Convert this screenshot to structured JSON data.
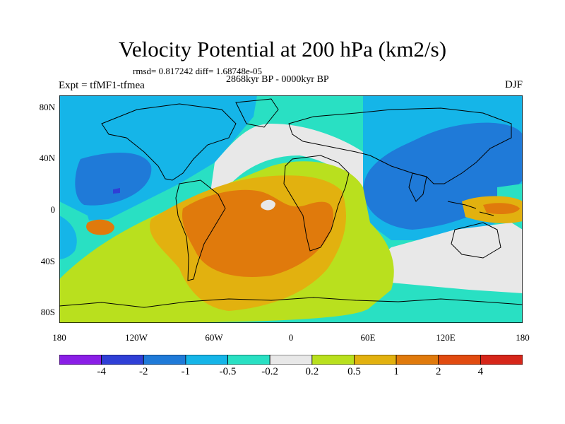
{
  "title": "Velocity Potential at 200 hPa (km2/s)",
  "stats": "rmsd= 0.817242  diff= 1.68748e-05",
  "period": "2868kyr BP - 0000kyr BP",
  "experiment": "Expt = tfMF1-tfmea",
  "season": "DJF",
  "lat_labels": [
    "80N",
    "40N",
    "0",
    "40S",
    "80S"
  ],
  "lon_labels": [
    "180",
    "120W",
    "60W",
    "0",
    "60E",
    "120E",
    "180"
  ],
  "legend": {
    "labels": [
      "-4",
      "-2",
      "-1",
      "-0.5",
      "-0.2",
      "0.2",
      "0.5",
      "1",
      "2",
      "4"
    ],
    "colors": [
      "#8a1ee6",
      "#2f3fd6",
      "#1f7ad8",
      "#15b5e8",
      "#29e0c3",
      "#e8e8e8",
      "#b9e01e",
      "#e2b10f",
      "#e07a0c",
      "#e14b10",
      "#d6261a"
    ]
  },
  "colors": {
    "land_outline": "#000000",
    "ocean_default": "#29e0c3"
  }
}
